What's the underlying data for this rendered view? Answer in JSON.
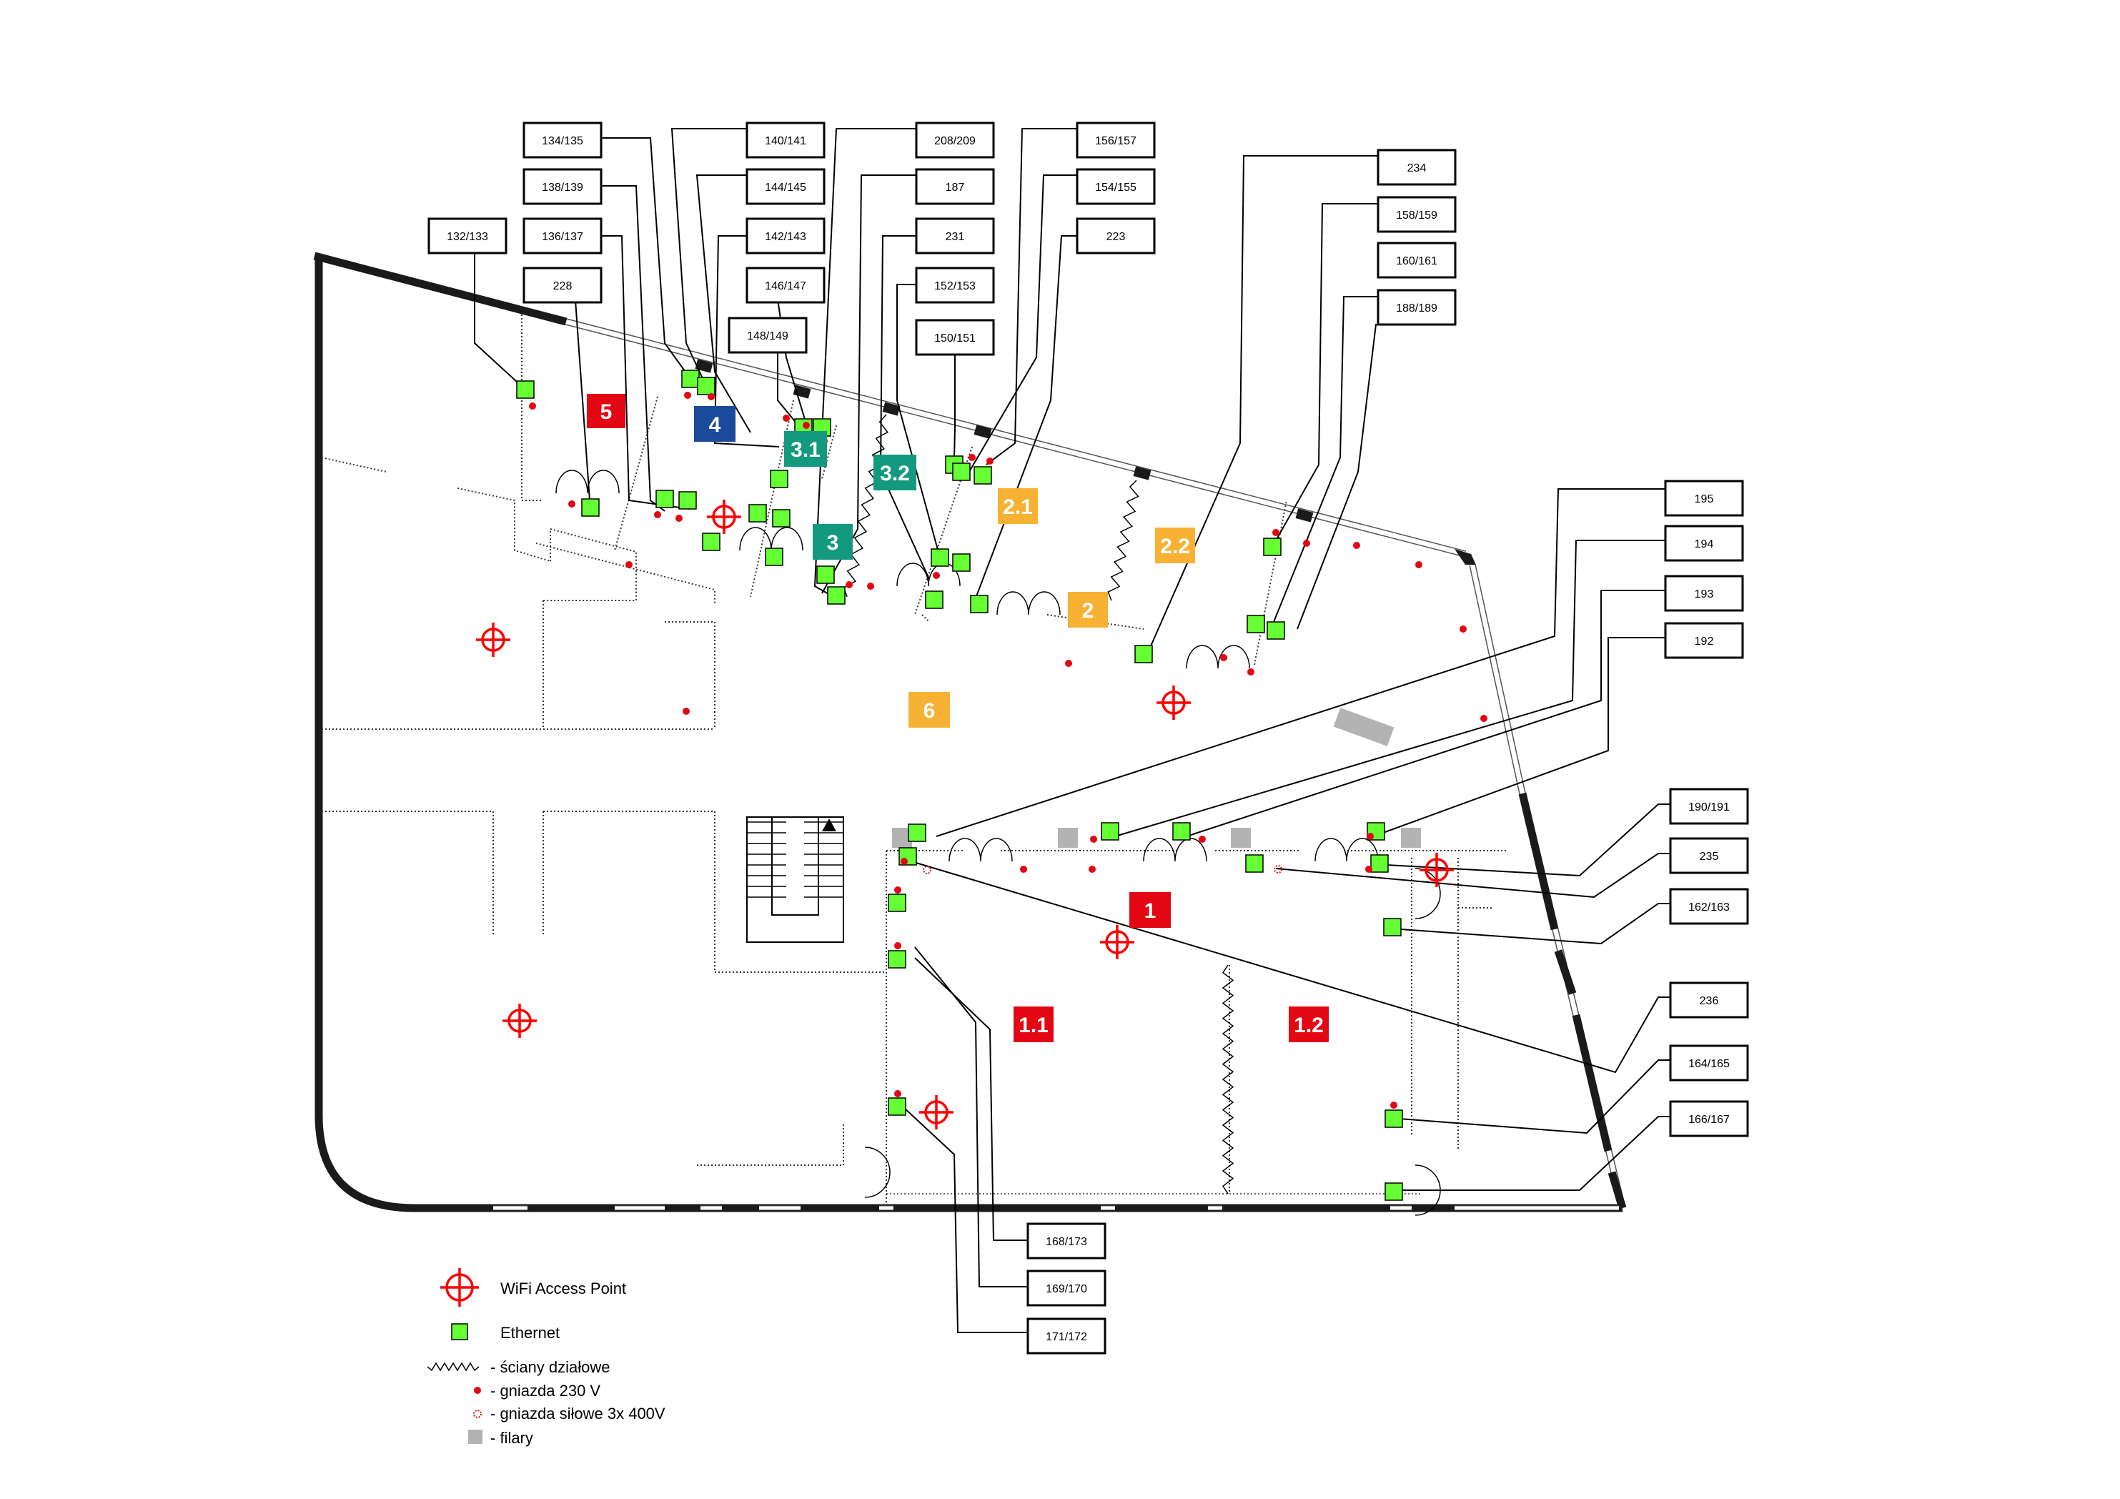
{
  "colors": {
    "wall": "#1a1a1a",
    "ethernet": "#66ff33",
    "wifi": "#ff0000",
    "socket": "#e30613",
    "pillar": "#b3b3b3",
    "room_red": "#e30613",
    "room_blue": "#1a4b9a",
    "room_teal": "#139a7e",
    "room_orange": "#f7b233"
  },
  "rooms": [
    {
      "id": "5",
      "label": "5",
      "color": "room_red"
    },
    {
      "id": "4",
      "label": "4",
      "color": "room_blue"
    },
    {
      "id": "3.1",
      "label": "3.1",
      "color": "room_teal"
    },
    {
      "id": "3.2",
      "label": "3.2",
      "color": "room_teal"
    },
    {
      "id": "3",
      "label": "3",
      "color": "room_teal"
    },
    {
      "id": "2.1",
      "label": "2.1",
      "color": "room_orange"
    },
    {
      "id": "2.2",
      "label": "2.2",
      "color": "room_orange"
    },
    {
      "id": "2",
      "label": "2",
      "color": "room_orange"
    },
    {
      "id": "6",
      "label": "6",
      "color": "room_orange"
    },
    {
      "id": "1",
      "label": "1",
      "color": "room_red"
    },
    {
      "id": "1.1",
      "label": "1.1",
      "color": "room_red"
    },
    {
      "id": "1.2",
      "label": "1.2",
      "color": "room_red"
    }
  ],
  "port_labels": [
    "134/135",
    "140/141",
    "208/209",
    "156/157",
    "234",
    "138/139",
    "144/145",
    "187",
    "154/155",
    "158/159",
    "132/133",
    "136/137",
    "142/143",
    "231",
    "223",
    "160/161",
    "228",
    "146/147",
    "152/153",
    "188/189",
    "148/149",
    "150/151",
    "195",
    "194",
    "193",
    "192",
    "190/191",
    "235",
    "162/163",
    "236",
    "164/165",
    "166/167",
    "168/173",
    "169/170",
    "171/172"
  ],
  "legend": [
    {
      "key": "wifi",
      "text": "WiFi Access Point"
    },
    {
      "key": "ethernet",
      "text": "Ethernet"
    },
    {
      "key": "walls",
      "text": "- ściany działowe"
    },
    {
      "key": "socket230",
      "text": "- gniazda 230 V"
    },
    {
      "key": "socket400",
      "text": "- gniazda siłowe 3x 400V"
    },
    {
      "key": "pillar",
      "text": "- filary"
    }
  ]
}
